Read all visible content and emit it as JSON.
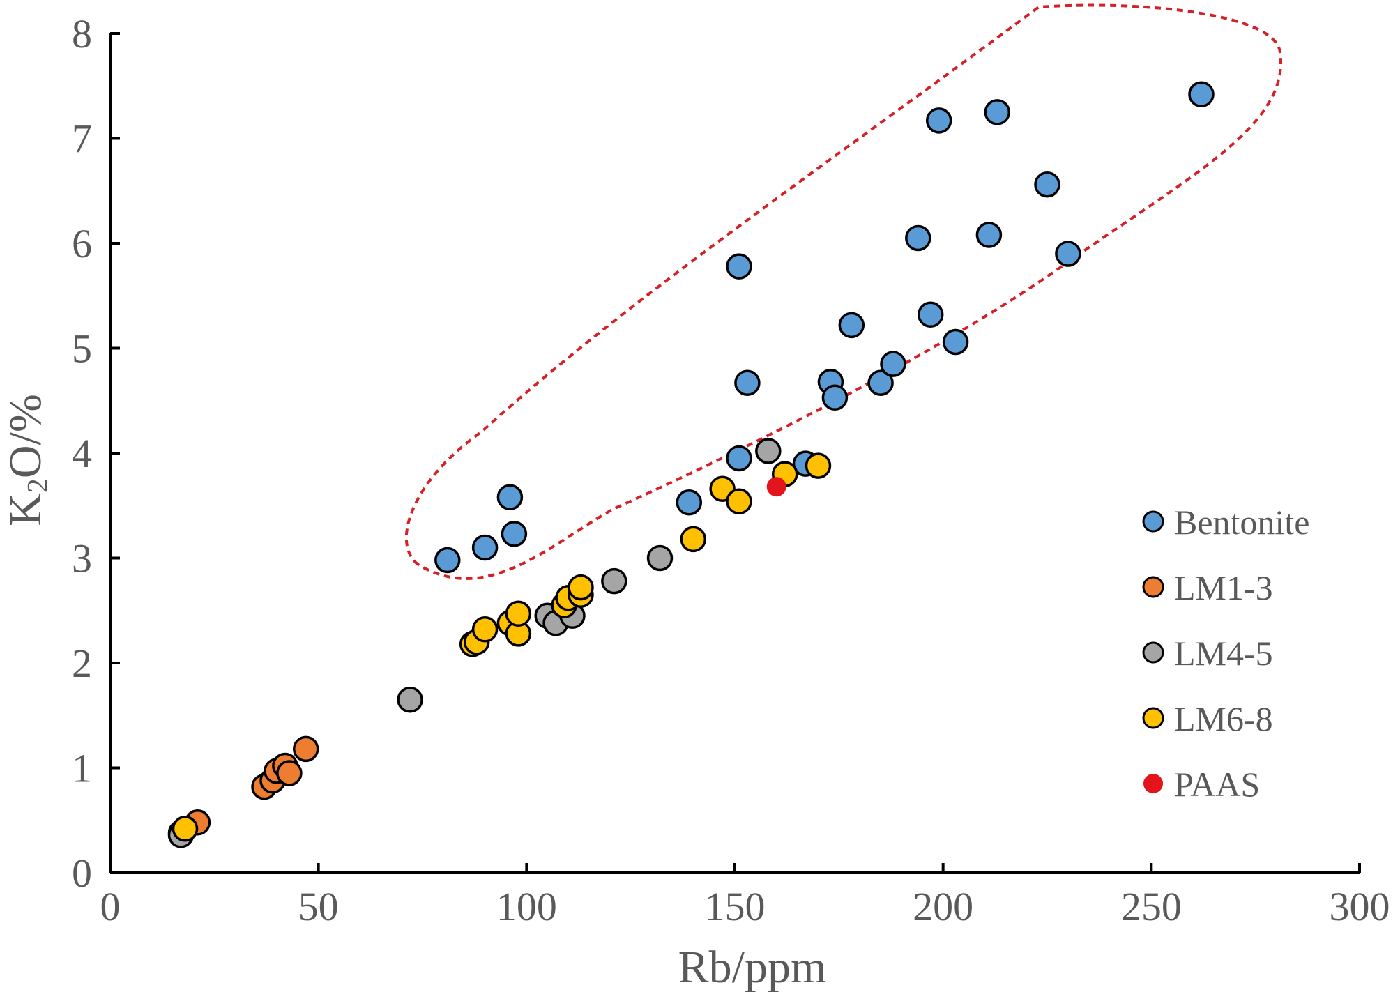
{
  "chart_data": {
    "type": "scatter",
    "title": "",
    "xlabel": "Rb/ppm",
    "ylabel_main": "K",
    "ylabel_sub": "2",
    "ylabel_rest": "O/%",
    "xlim": [
      0,
      300
    ],
    "ylim": [
      0,
      8
    ],
    "xticks": [
      0,
      50,
      100,
      150,
      200,
      250,
      300
    ],
    "yticks": [
      0,
      1,
      2,
      3,
      4,
      5,
      6,
      7,
      8
    ],
    "xtick_labels": [
      "0",
      "50",
      "100",
      "150",
      "200",
      "250",
      "300"
    ],
    "ytick_labels": [
      "0",
      "1",
      "2",
      "3",
      "4",
      "5",
      "6",
      "7",
      "8"
    ],
    "grid": false,
    "legend_position": "right",
    "annotation": "dashed red ellipse enclosing Bentonite field",
    "series": [
      {
        "name": "Bentonite",
        "color": "#5b9bd5",
        "x": [
          81,
          90,
          96,
          97,
          139,
          151,
          151,
          153,
          167,
          173,
          174,
          178,
          185,
          188,
          194,
          197,
          199,
          203,
          211,
          213,
          225,
          230,
          262
        ],
        "y": [
          2.98,
          3.1,
          3.58,
          3.23,
          3.53,
          3.95,
          5.78,
          4.67,
          3.9,
          4.68,
          4.53,
          5.22,
          4.67,
          4.85,
          6.05,
          5.32,
          7.17,
          5.06,
          6.08,
          7.25,
          6.56,
          5.9,
          7.42
        ]
      },
      {
        "name": "LM1-3",
        "color": "#ed7d31",
        "x": [
          17,
          21,
          37,
          39,
          40,
          42,
          43,
          47
        ],
        "y": [
          0.38,
          0.48,
          0.82,
          0.88,
          0.97,
          1.02,
          0.95,
          1.18
        ]
      },
      {
        "name": "LM4-5",
        "color": "#a5a5a5",
        "x": [
          17,
          72,
          105,
          107,
          111,
          121,
          132,
          158
        ],
        "y": [
          0.36,
          1.65,
          2.45,
          2.38,
          2.45,
          2.78,
          3.0,
          4.02
        ]
      },
      {
        "name": "LM6-8",
        "color": "#ffc000",
        "x": [
          18,
          87,
          88,
          90,
          96,
          98,
          98,
          109,
          110,
          113,
          113,
          140,
          147,
          151,
          162,
          170
        ],
        "y": [
          0.42,
          2.18,
          2.2,
          2.32,
          2.38,
          2.28,
          2.47,
          2.55,
          2.62,
          2.65,
          2.72,
          3.18,
          3.66,
          3.54,
          3.8,
          3.88
        ]
      },
      {
        "name": "PAAS",
        "color": "#e3141c",
        "x": [
          160
        ],
        "y": [
          3.68
        ]
      }
    ]
  }
}
